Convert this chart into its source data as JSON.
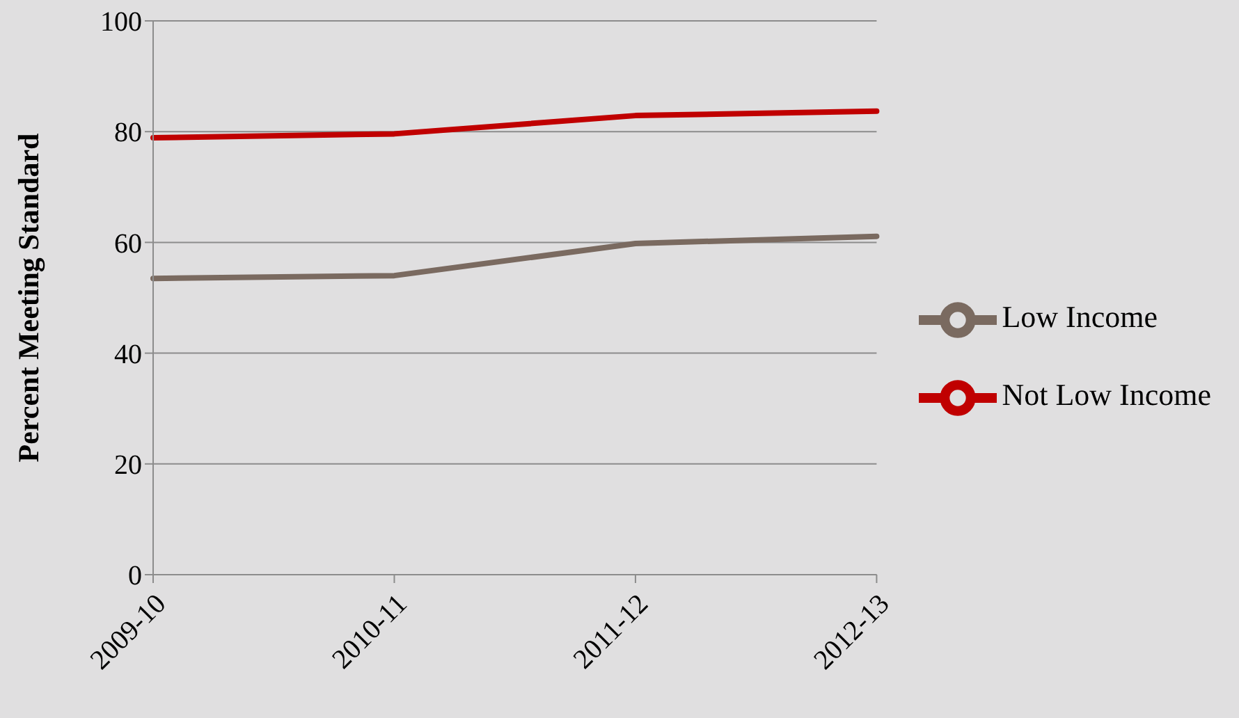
{
  "chart_data": {
    "type": "line",
    "ylabel": "Percent Meeting Standard",
    "categories": [
      "2009-10",
      "2010-11",
      "2011-12",
      "2012-13"
    ],
    "series": [
      {
        "name": "Not Low Income",
        "color": "#c00000",
        "values": [
          78.9,
          79.6,
          82.9,
          83.7
        ]
      },
      {
        "name": "Low Income",
        "color": "#7a6a60",
        "values": [
          53.5,
          54.0,
          59.8,
          61.1
        ]
      }
    ],
    "ylim": [
      0,
      100
    ],
    "yticks": [
      0,
      20,
      40,
      60,
      80,
      100
    ],
    "grid": "y",
    "legend": "right",
    "marker": "none",
    "line_style": "solid"
  }
}
